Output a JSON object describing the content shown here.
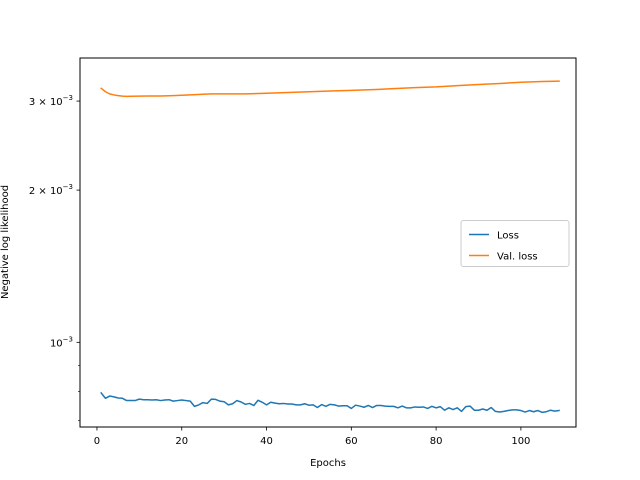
{
  "chart_data": {
    "type": "line",
    "title": "",
    "xlabel": "Epochs",
    "ylabel": "Negative log likelihood",
    "yscale": "log",
    "xlim": [
      -4,
      113
    ],
    "ylim": [
      0.00068,
      0.00365
    ],
    "x_ticks": [
      0,
      20,
      40,
      60,
      80,
      100
    ],
    "y_ticks": [
      {
        "value": 0.001,
        "base": "10",
        "exp": "−3",
        "coef": ""
      },
      {
        "value": 0.002,
        "base": "10",
        "exp": "−3",
        "coef": "2 × "
      },
      {
        "value": 0.003,
        "base": "10",
        "exp": "−3",
        "coef": "3 × "
      }
    ],
    "grid": false,
    "legend_position": "center-right",
    "series": [
      {
        "name": "Loss",
        "color": "#1f77b4",
        "points": [
          [
            1,
            0.000794
          ],
          [
            2,
            0.000775
          ],
          [
            3,
            0.000783
          ],
          [
            4,
            0.00078
          ],
          [
            5,
            0.000776
          ],
          [
            6,
            0.000775
          ],
          [
            7,
            0.000767
          ],
          [
            8,
            0.000767
          ],
          [
            9,
            0.000767
          ],
          [
            10,
            0.000772
          ],
          [
            11,
            0.00077
          ],
          [
            12,
            0.00077
          ],
          [
            13,
            0.000769
          ],
          [
            14,
            0.00077
          ],
          [
            15,
            0.000767
          ],
          [
            16,
            0.000769
          ],
          [
            17,
            0.00077
          ],
          [
            18,
            0.000765
          ],
          [
            19,
            0.000767
          ],
          [
            20,
            0.000769
          ],
          [
            21,
            0.000767
          ],
          [
            22,
            0.000765
          ],
          [
            23,
            0.000747
          ],
          [
            24,
            0.000752
          ],
          [
            25,
            0.00076
          ],
          [
            26,
            0.000757
          ],
          [
            27,
            0.000772
          ],
          [
            28,
            0.000771
          ],
          [
            29,
            0.000765
          ],
          [
            30,
            0.000763
          ],
          [
            31,
            0.000752
          ],
          [
            32,
            0.000756
          ],
          [
            33,
            0.000767
          ],
          [
            34,
            0.000762
          ],
          [
            35,
            0.000754
          ],
          [
            36,
            0.000757
          ],
          [
            37,
            0.00075
          ],
          [
            38,
            0.000768
          ],
          [
            39,
            0.000761
          ],
          [
            40,
            0.000752
          ],
          [
            41,
            0.000761
          ],
          [
            42,
            0.000758
          ],
          [
            43,
            0.000756
          ],
          [
            44,
            0.000757
          ],
          [
            45,
            0.000755
          ],
          [
            46,
            0.000755
          ],
          [
            47,
            0.000752
          ],
          [
            48,
            0.000752
          ],
          [
            49,
            0.000756
          ],
          [
            50,
            0.000751
          ],
          [
            51,
            0.000752
          ],
          [
            52,
            0.000743
          ],
          [
            53,
            0.000753
          ],
          [
            54,
            0.000747
          ],
          [
            55,
            0.000754
          ],
          [
            56,
            0.000752
          ],
          [
            57,
            0.000748
          ],
          [
            58,
            0.000749
          ],
          [
            59,
            0.000749
          ],
          [
            60,
            0.00074
          ],
          [
            61,
            0.000751
          ],
          [
            62,
            0.000748
          ],
          [
            63,
            0.000744
          ],
          [
            64,
            0.00075
          ],
          [
            65,
            0.000743
          ],
          [
            66,
            0.00075
          ],
          [
            67,
            0.00075
          ],
          [
            68,
            0.000748
          ],
          [
            69,
            0.000747
          ],
          [
            70,
            0.000747
          ],
          [
            71,
            0.000742
          ],
          [
            72,
            0.000748
          ],
          [
            73,
            0.000742
          ],
          [
            74,
            0.000742
          ],
          [
            75,
            0.000745
          ],
          [
            76,
            0.000744
          ],
          [
            77,
            0.000745
          ],
          [
            78,
            0.00074
          ],
          [
            79,
            0.000747
          ],
          [
            80,
            0.000742
          ],
          [
            81,
            0.000746
          ],
          [
            82,
            0.000734
          ],
          [
            83,
            0.000742
          ],
          [
            84,
            0.000736
          ],
          [
            85,
            0.000742
          ],
          [
            86,
            0.00073
          ],
          [
            87,
            0.000746
          ],
          [
            88,
            0.000748
          ],
          [
            89,
            0.000734
          ],
          [
            90,
            0.000734
          ],
          [
            91,
            0.000738
          ],
          [
            92,
            0.000734
          ],
          [
            93,
            0.000743
          ],
          [
            94,
            0.00073
          ],
          [
            95,
            0.000728
          ],
          [
            96,
            0.00073
          ],
          [
            97,
            0.000733
          ],
          [
            98,
            0.000735
          ],
          [
            99,
            0.000735
          ],
          [
            100,
            0.000733
          ],
          [
            101,
            0.000728
          ],
          [
            102,
            0.000733
          ],
          [
            103,
            0.000729
          ],
          [
            104,
            0.000733
          ],
          [
            105,
            0.000727
          ],
          [
            106,
            0.000729
          ],
          [
            107,
            0.000734
          ],
          [
            108,
            0.000731
          ],
          [
            109,
            0.000733
          ]
        ]
      },
      {
        "name": "Val. loss",
        "color": "#ff7f0e",
        "points": [
          [
            1,
            0.00318
          ],
          [
            2,
            0.00313
          ],
          [
            3,
            0.0031
          ],
          [
            4,
            0.003085
          ],
          [
            5,
            0.003075
          ],
          [
            6,
            0.003068
          ],
          [
            7,
            0.003065
          ],
          [
            8,
            0.003066
          ],
          [
            10,
            0.003068
          ],
          [
            12,
            0.00307
          ],
          [
            15,
            0.00307
          ],
          [
            18,
            0.003075
          ],
          [
            20,
            0.00308
          ],
          [
            22,
            0.003085
          ],
          [
            25,
            0.003095
          ],
          [
            27,
            0.0031
          ],
          [
            30,
            0.0031
          ],
          [
            35,
            0.0031
          ],
          [
            40,
            0.003108
          ],
          [
            45,
            0.00312
          ],
          [
            50,
            0.00313
          ],
          [
            55,
            0.00314
          ],
          [
            60,
            0.00315
          ],
          [
            65,
            0.00316
          ],
          [
            70,
            0.003175
          ],
          [
            75,
            0.00319
          ],
          [
            80,
            0.0032
          ],
          [
            85,
            0.003218
          ],
          [
            90,
            0.003235
          ],
          [
            95,
            0.00325
          ],
          [
            100,
            0.003268
          ],
          [
            105,
            0.00328
          ],
          [
            109,
            0.003285
          ]
        ]
      }
    ]
  }
}
